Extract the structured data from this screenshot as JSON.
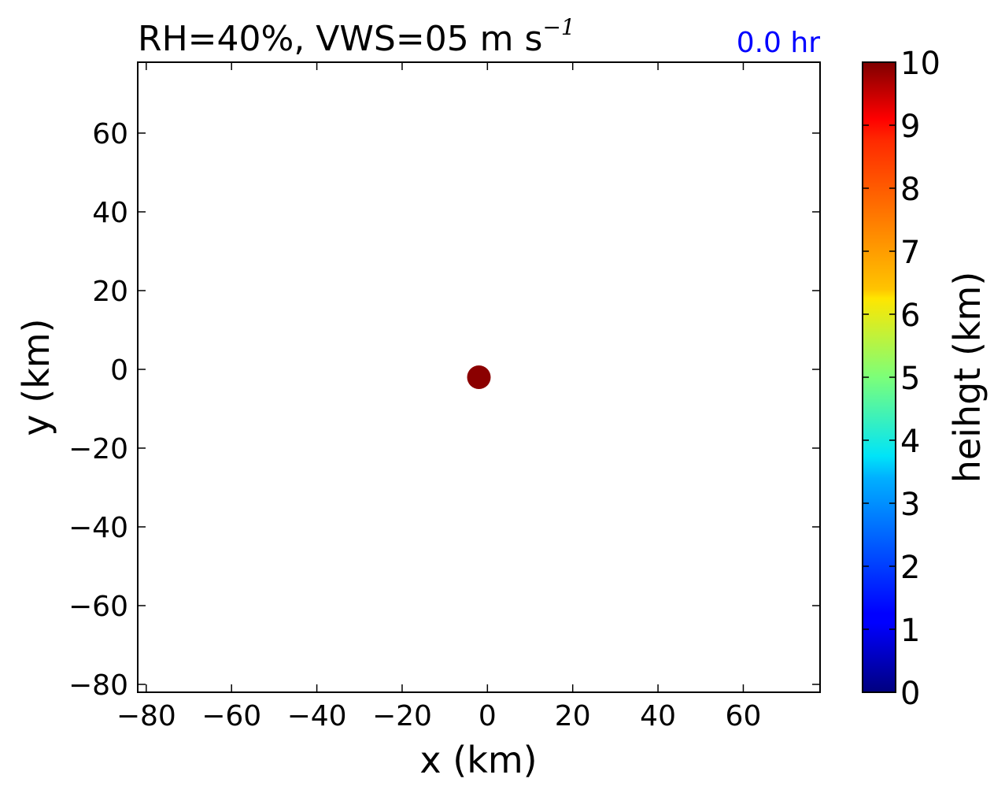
{
  "chart_data": {
    "type": "scatter",
    "title_main": "RH=40%, VWS=05 m s",
    "title_sup": "−1",
    "time_label": "0.0 hr",
    "time_label_color": "#0000ff",
    "xlabel": "x (km)",
    "ylabel": "y (km)",
    "xlim": [
      -82,
      78
    ],
    "ylim": [
      -82,
      78
    ],
    "xticks": [
      -80,
      -60,
      -40,
      -20,
      0,
      20,
      40,
      60
    ],
    "yticks": [
      -80,
      -60,
      -40,
      -20,
      0,
      20,
      40,
      60
    ],
    "xtick_labels": [
      "−80",
      "−60",
      "−40",
      "−20",
      "0",
      "20",
      "40",
      "60"
    ],
    "ytick_labels": [
      "−80",
      "−60",
      "−40",
      "−20",
      "0",
      "20",
      "40",
      "60"
    ],
    "points": [
      {
        "x": -2,
        "y": -2,
        "height_km": 10,
        "color": "#8b0000"
      }
    ],
    "colorbar": {
      "label": "heihgt (km)",
      "min": 0,
      "max": 10,
      "ticks": [
        0,
        1,
        2,
        3,
        4,
        5,
        6,
        7,
        8,
        9,
        10
      ],
      "tick_labels": [
        "0",
        "1",
        "2",
        "3",
        "4",
        "5",
        "6",
        "7",
        "8",
        "9",
        "10"
      ],
      "colormap": "jet"
    },
    "grid": false
  }
}
